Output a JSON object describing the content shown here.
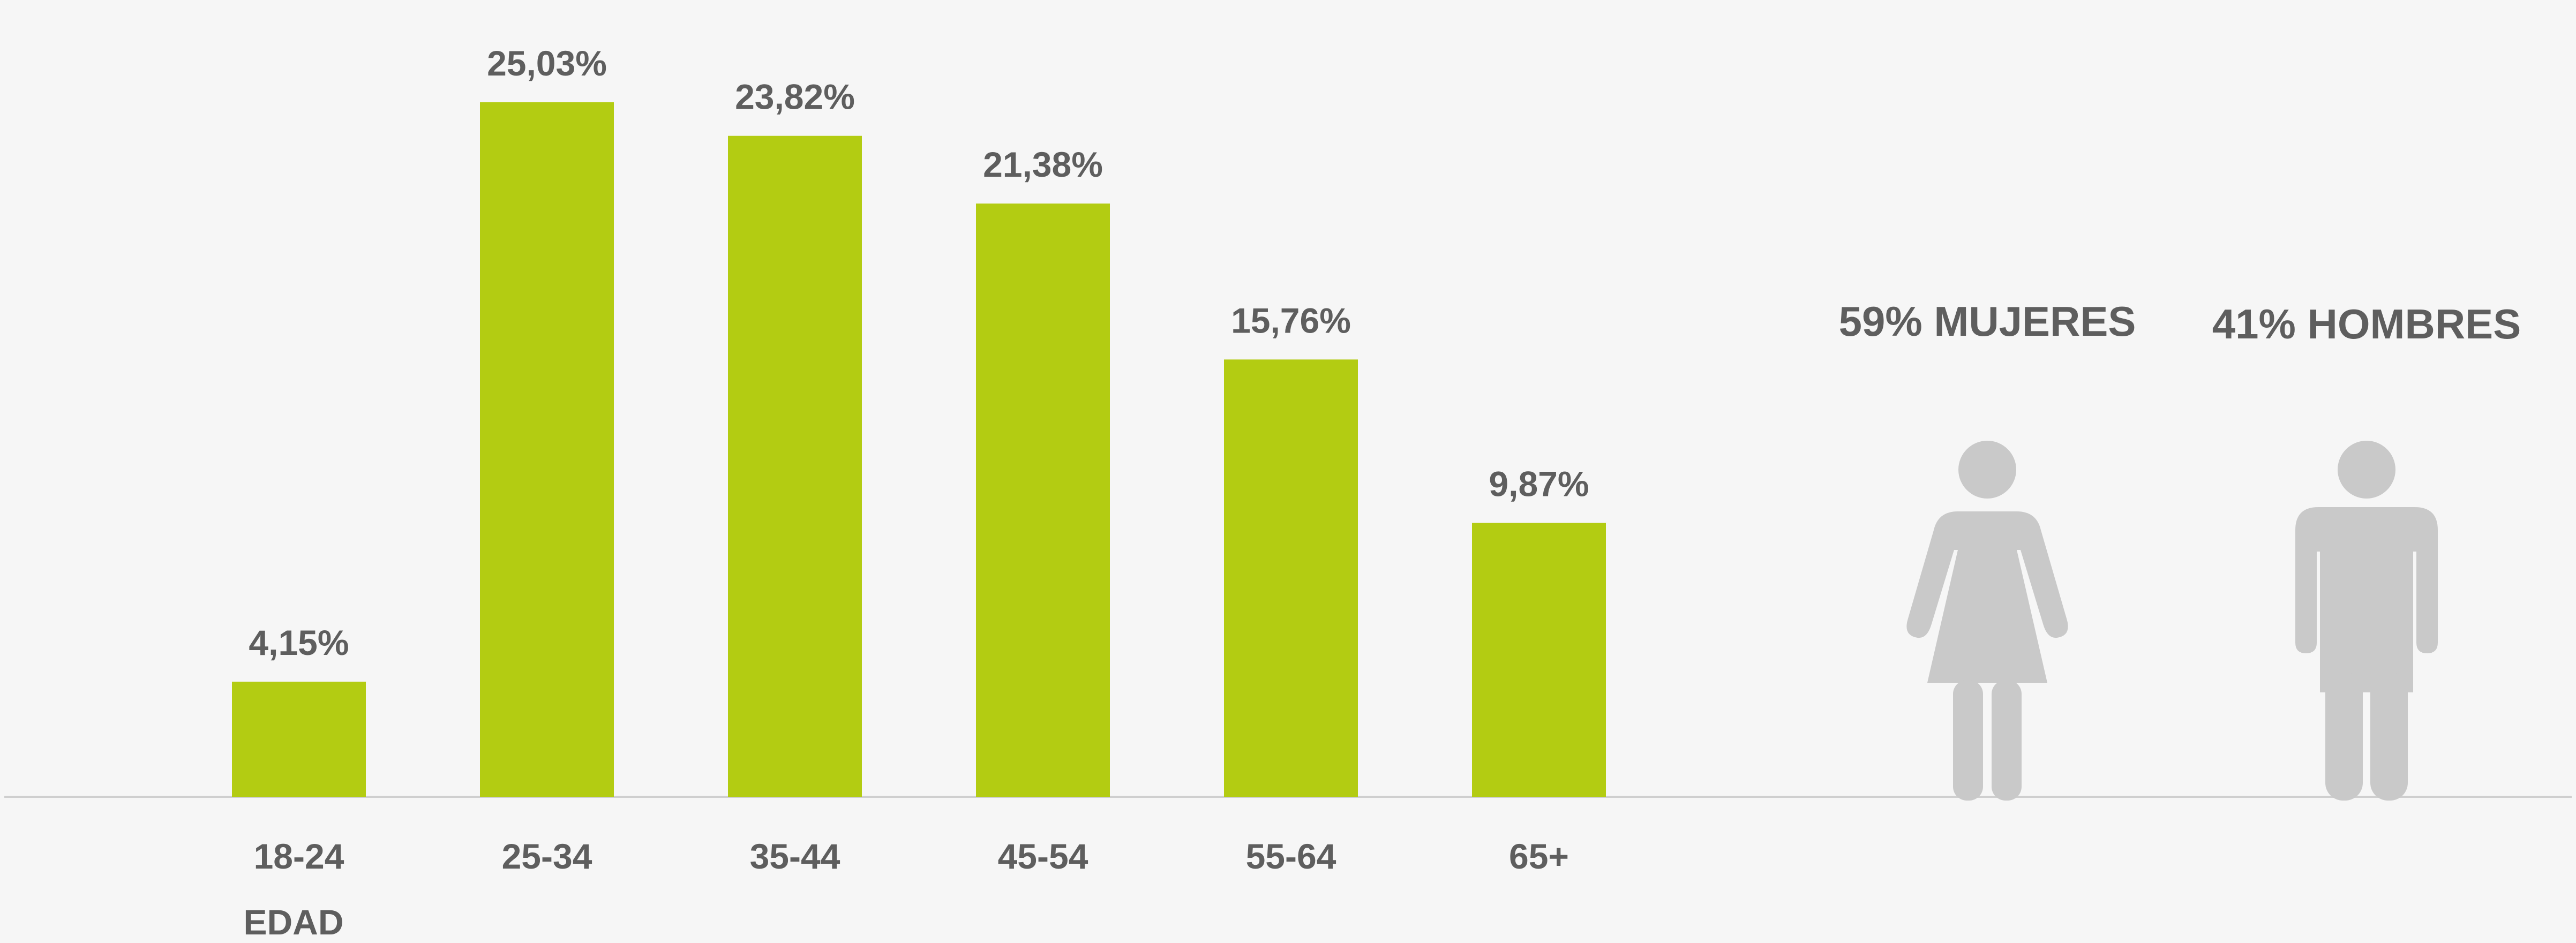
{
  "chart_data": {
    "type": "bar",
    "categories": [
      "18-24",
      "25-34",
      "35-44",
      "45-54",
      "55-64",
      "65+"
    ],
    "values": [
      4.15,
      25.03,
      23.82,
      21.38,
      15.76,
      9.87
    ],
    "value_labels": [
      "4,15%",
      "25,03%",
      "23,82%",
      "21,38%",
      "15,76%",
      "9,87%"
    ],
    "xlabel": "EDAD",
    "ylabel": "",
    "ylim": [
      0,
      28.5
    ],
    "grid": false,
    "legend": "none",
    "bar_color": "#b3cc12",
    "axis_color": "#cfcfcf",
    "label_color": "#5e5e5e"
  },
  "gender": {
    "women": {
      "label": "59% MUJERES",
      "icon": "female-person-icon",
      "share": 0.59
    },
    "men": {
      "label": "41% HOMBRES",
      "icon": "male-person-icon",
      "share": 0.41
    },
    "icon_color": "#c9c9c9"
  }
}
